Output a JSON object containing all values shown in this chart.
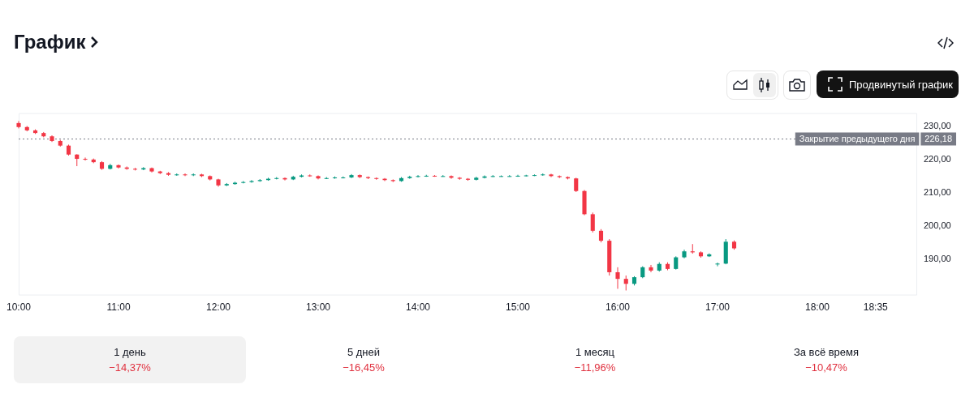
{
  "chart_data": {
    "type": "candlestick",
    "title": "График",
    "x": [
      10,
      10.0833,
      10.1667,
      10.25,
      10.3333,
      10.4167,
      10.5,
      10.5833,
      10.6667,
      10.75,
      10.8333,
      10.9167,
      11,
      11.0833,
      11.1667,
      11.25,
      11.3333,
      11.4167,
      11.5,
      11.5833,
      11.6667,
      11.75,
      11.8333,
      11.9167,
      12,
      12.0833,
      12.1667,
      12.25,
      12.3333,
      12.4167,
      12.5,
      12.5833,
      12.6667,
      12.75,
      12.8333,
      12.9167,
      13,
      13.0833,
      13.1667,
      13.25,
      13.3333,
      13.4167,
      13.5,
      13.5833,
      13.6667,
      13.75,
      13.8333,
      13.9167,
      14,
      14.0833,
      14.1667,
      14.25,
      14.3333,
      14.4167,
      14.5,
      14.5833,
      14.6667,
      14.75,
      14.8333,
      14.9167,
      15,
      15.0833,
      15.1667,
      15.25,
      15.3333,
      15.4167,
      15.5,
      15.5833,
      15.6667,
      15.75,
      15.8333,
      15.9167,
      16,
      16.0833,
      16.1667,
      16.25,
      16.3333,
      16.4167,
      16.5,
      16.5833,
      16.6667,
      16.75,
      16.8333,
      16.9167,
      17,
      17.0833,
      17.1667
    ],
    "ohlc": [
      [
        231.0,
        231.6,
        229.4,
        229.8
      ],
      [
        229.8,
        230.1,
        228.5,
        228.8
      ],
      [
        228.8,
        229.1,
        227.7,
        228.0
      ],
      [
        228.0,
        228.3,
        226.7,
        227.0
      ],
      [
        227.0,
        227.3,
        225.3,
        225.6
      ],
      [
        225.6,
        225.9,
        223.9,
        224.2
      ],
      [
        224.2,
        224.5,
        221.2,
        221.5
      ],
      [
        221.5,
        221.6,
        218.0,
        220.2
      ],
      [
        220.2,
        220.6,
        219.7,
        220.0
      ],
      [
        220.0,
        220.3,
        218.9,
        219.2
      ],
      [
        219.2,
        219.5,
        216.9,
        217.2
      ],
      [
        217.2,
        218.7,
        217.0,
        218.3
      ],
      [
        218.3,
        218.5,
        217.3,
        217.6
      ],
      [
        217.6,
        217.9,
        216.9,
        217.2
      ],
      [
        217.2,
        217.5,
        216.7,
        217.0
      ],
      [
        217.0,
        217.7,
        216.8,
        217.4
      ],
      [
        217.4,
        217.6,
        216.1,
        216.4
      ],
      [
        216.4,
        216.6,
        215.6,
        215.9
      ],
      [
        215.9,
        216.2,
        215.1,
        215.4
      ],
      [
        215.4,
        215.8,
        215.1,
        215.5
      ],
      [
        215.5,
        215.8,
        215.0,
        215.3
      ],
      [
        215.3,
        215.8,
        215.0,
        215.5
      ],
      [
        215.5,
        215.7,
        214.7,
        215.0
      ],
      [
        215.0,
        215.2,
        213.7,
        214.0
      ],
      [
        214.0,
        214.2,
        211.8,
        212.2
      ],
      [
        212.2,
        212.9,
        212.0,
        212.6
      ],
      [
        212.6,
        213.3,
        212.4,
        213.0
      ],
      [
        213.0,
        213.5,
        212.8,
        213.2
      ],
      [
        213.2,
        213.8,
        213.0,
        213.5
      ],
      [
        213.5,
        214.1,
        213.3,
        213.8
      ],
      [
        213.8,
        214.5,
        213.6,
        214.2
      ],
      [
        214.2,
        214.7,
        214.0,
        214.4
      ],
      [
        214.4,
        214.6,
        213.7,
        214.0
      ],
      [
        214.0,
        215.1,
        213.8,
        214.8
      ],
      [
        214.8,
        215.5,
        214.6,
        215.2
      ],
      [
        215.2,
        215.5,
        214.8,
        215.0
      ],
      [
        215.0,
        215.2,
        214.0,
        214.3
      ],
      [
        214.3,
        214.7,
        214.1,
        214.4
      ],
      [
        214.4,
        214.9,
        214.2,
        214.6
      ],
      [
        214.6,
        214.9,
        214.3,
        214.6
      ],
      [
        214.6,
        215.6,
        214.4,
        215.3
      ],
      [
        215.3,
        215.5,
        214.4,
        214.7
      ],
      [
        214.7,
        214.9,
        214.1,
        214.4
      ],
      [
        214.4,
        214.6,
        213.9,
        214.2
      ],
      [
        214.2,
        214.4,
        213.5,
        213.8
      ],
      [
        213.8,
        214.0,
        213.2,
        213.5
      ],
      [
        213.5,
        214.7,
        213.3,
        214.4
      ],
      [
        214.4,
        215.1,
        214.2,
        214.8
      ],
      [
        214.8,
        215.3,
        214.6,
        215.0
      ],
      [
        215.0,
        215.4,
        214.8,
        215.1
      ],
      [
        215.1,
        215.3,
        214.8,
        215.0
      ],
      [
        215.0,
        215.3,
        214.8,
        215.0
      ],
      [
        215.0,
        215.2,
        214.2,
        214.5
      ],
      [
        214.5,
        214.7,
        213.9,
        214.2
      ],
      [
        214.2,
        214.4,
        213.6,
        213.9
      ],
      [
        213.9,
        214.8,
        213.7,
        214.5
      ],
      [
        214.5,
        215.2,
        214.3,
        214.9
      ],
      [
        214.9,
        215.3,
        214.7,
        215.0
      ],
      [
        215.0,
        215.2,
        214.8,
        215.0
      ],
      [
        215.0,
        215.3,
        214.8,
        215.0
      ],
      [
        215.0,
        215.4,
        214.8,
        215.1
      ],
      [
        215.1,
        215.4,
        214.9,
        215.2
      ],
      [
        215.2,
        215.5,
        215.0,
        215.3
      ],
      [
        215.3,
        215.8,
        215.1,
        215.5
      ],
      [
        215.5,
        215.7,
        214.7,
        215.0
      ],
      [
        215.0,
        215.2,
        214.4,
        214.7
      ],
      [
        214.7,
        214.9,
        214.0,
        214.3
      ],
      [
        214.3,
        214.5,
        210.2,
        210.5
      ],
      [
        210.5,
        210.8,
        203.2,
        203.5
      ],
      [
        203.5,
        204.0,
        198.0,
        198.5
      ],
      [
        198.5,
        199.0,
        195.0,
        195.5
      ],
      [
        195.5,
        196.0,
        185.0,
        186.0
      ],
      [
        186.0,
        187.5,
        181.0,
        184.0
      ],
      [
        184.0,
        185.0,
        180.5,
        182.5
      ],
      [
        182.5,
        184.8,
        182.0,
        184.5
      ],
      [
        184.5,
        187.8,
        184.2,
        187.5
      ],
      [
        187.5,
        188.2,
        186.0,
        186.5
      ],
      [
        186.5,
        189.0,
        186.2,
        188.5
      ],
      [
        188.5,
        189.0,
        186.6,
        187.0
      ],
      [
        187.0,
        190.8,
        186.8,
        190.5
      ],
      [
        190.5,
        192.8,
        190.2,
        192.3
      ],
      [
        192.3,
        194.5,
        191.6,
        192.0
      ],
      [
        192.0,
        192.3,
        190.4,
        190.8
      ],
      [
        190.8,
        191.7,
        190.6,
        191.4
      ],
      [
        188.5,
        188.9,
        187.8,
        188.6
      ],
      [
        188.6,
        196.0,
        188.4,
        195.2
      ],
      [
        195.2,
        195.6,
        192.8,
        193.2
      ]
    ],
    "xlim": [
      10,
      19
    ],
    "xticks": [
      {
        "value": 10,
        "label": "10:00"
      },
      {
        "value": 11,
        "label": "11:00"
      },
      {
        "value": 12,
        "label": "12:00"
      },
      {
        "value": 13,
        "label": "13:00"
      },
      {
        "value": 14,
        "label": "14:00"
      },
      {
        "value": 15,
        "label": "15:00"
      },
      {
        "value": 16,
        "label": "16:00"
      },
      {
        "value": 17,
        "label": "17:00"
      },
      {
        "value": 18,
        "label": "18:00"
      },
      {
        "value": 18.5833,
        "label": "18:35"
      }
    ],
    "ylim": [
      179,
      234
    ],
    "yticks": [
      {
        "value": 190,
        "label": "190,00"
      },
      {
        "value": 200,
        "label": "200,00"
      },
      {
        "value": 210,
        "label": "210,00"
      },
      {
        "value": 220,
        "label": "220,00"
      },
      {
        "value": 230,
        "label": "230,00"
      }
    ],
    "ref_lines": [
      {
        "axis": "y",
        "value": 226.18,
        "label": "Закрытие предыдущего дня",
        "color": "#787b86",
        "line_style": "dotted"
      }
    ],
    "annotations": [
      "Продвинутый график",
      "1 день",
      "−14,37%",
      "5 дней",
      "−16,45%",
      "1 месяц",
      "−11,96%",
      "За всё время",
      "−10,47%",
      "226,18"
    ]
  }
}
